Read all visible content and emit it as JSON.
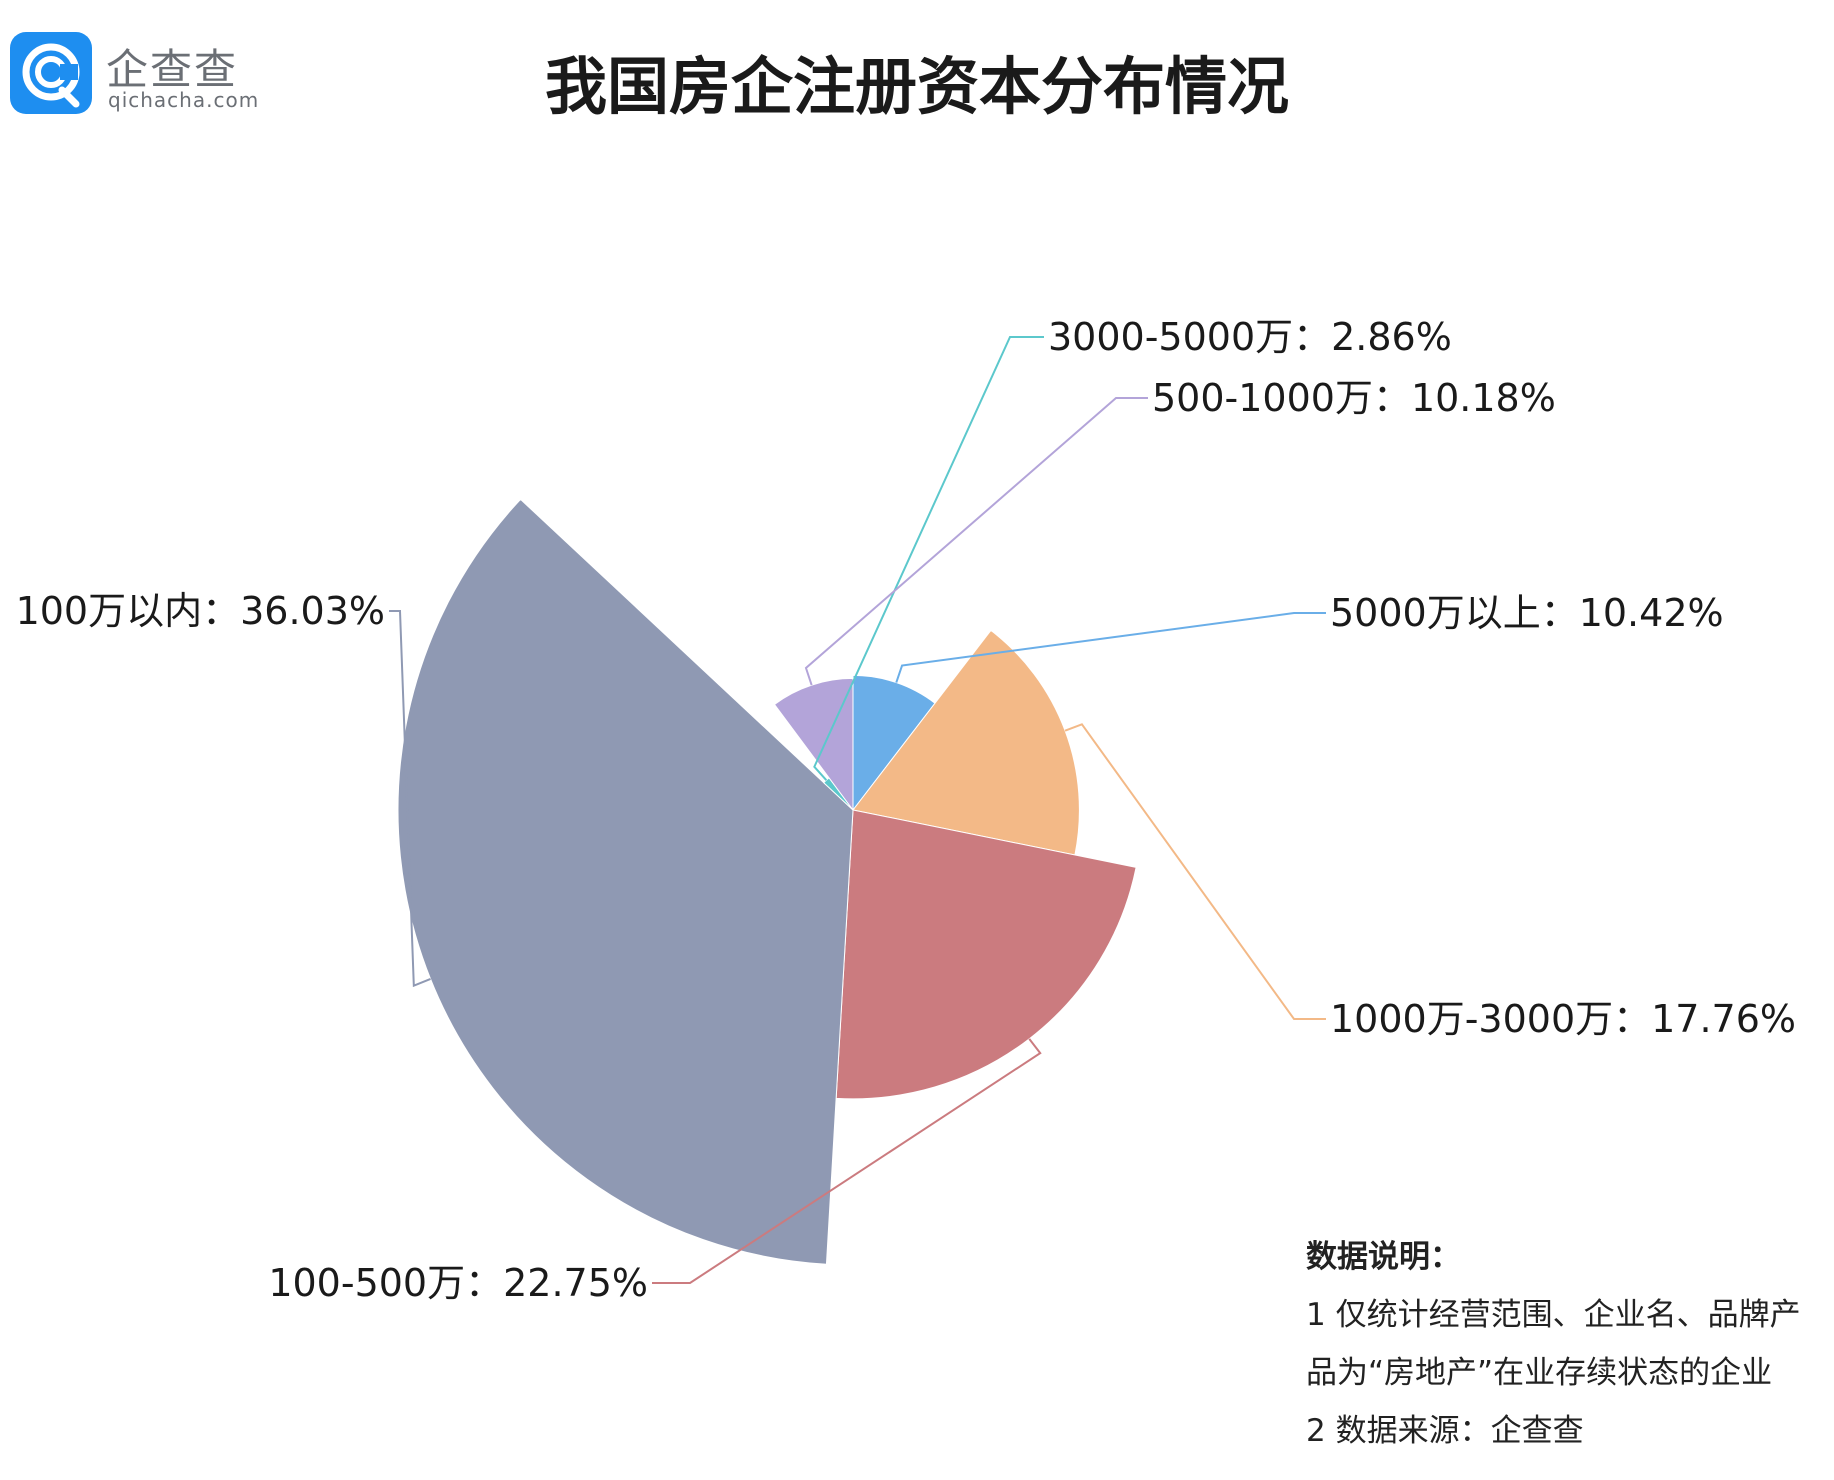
{
  "header": {
    "logo_name": "企查查",
    "logo_url": "qichacha.com",
    "title": "我国房企注册资本分布情况"
  },
  "chart_data": {
    "type": "pie",
    "variant": "rose",
    "title": "我国房企注册资本分布情况",
    "slices": [
      {
        "label": "5000万以上",
        "value": 10.42,
        "display": "5000万以上：10.42%",
        "color": "#6aaee8"
      },
      {
        "label": "1000万-3000万",
        "value": 17.76,
        "display": "1000万-3000万：17.76%",
        "color": "#f3b987"
      },
      {
        "label": "100-500万",
        "value": 22.75,
        "display": "100-500万：22.75%",
        "color": "#cb7b7f"
      },
      {
        "label": "100万以内",
        "value": 36.03,
        "display": "100万以内：36.03%",
        "color": "#8f99b3"
      },
      {
        "label": "3000-5000万",
        "value": 2.86,
        "display": "3000-5000万：2.86%",
        "color": "#5cc8cc"
      },
      {
        "label": "500-1000万",
        "value": 10.18,
        "display": "500-1000万：10.18%",
        "color": "#b3a4d9"
      }
    ]
  },
  "notes": {
    "title": "数据说明：",
    "lines": [
      "1 仅统计经营范围、企业名、品牌产",
      "品为“房地产”在业存续状态的企业",
      "2 数据来源：企查查"
    ]
  }
}
